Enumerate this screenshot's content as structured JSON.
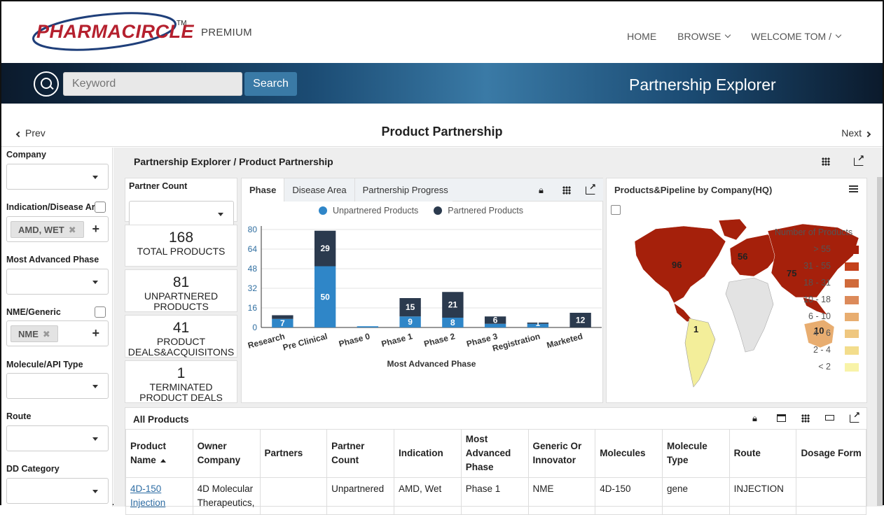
{
  "brand": {
    "logo_text": "PHARMACIRCLE",
    "tm": "TM",
    "tier": "PREMIUM"
  },
  "nav": {
    "home": "HOME",
    "browse": "BROWSE",
    "welcome": "WELCOME TOM /"
  },
  "search": {
    "placeholder": "Keyword",
    "button": "Search",
    "section_title": "Partnership Explorer"
  },
  "page": {
    "prev": "Prev",
    "next": "Next",
    "title": "Product Partnership"
  },
  "filters": {
    "company": "Company",
    "indication": "Indication/Disease Ar",
    "indication_tag": "AMD, WET",
    "phase": "Most Advanced Phase",
    "nme": "NME/Generic",
    "nme_tag": "NME",
    "molecule": "Molecule/API Type",
    "route": "Route",
    "dd": "DD Category"
  },
  "breadcrumb": "Partnership Explorer / Product Partnership",
  "kpis": {
    "partner_count_label": "Partner Count",
    "total": {
      "n": "168",
      "label": "TOTAL PRODUCTS"
    },
    "unpartnered": {
      "n": "81",
      "label1": "UNPARTNERED",
      "label2": "PRODUCTS"
    },
    "deals": {
      "n": "41",
      "label1": "PRODUCT",
      "label2": "DEALS&ACQUISITONS"
    },
    "terminated": {
      "n": "1",
      "label1": "TERMINATED",
      "label2": "PRODUCT DEALS"
    }
  },
  "chart_tabs": [
    "Phase",
    "Disease Area",
    "Partnership Progress"
  ],
  "chart_data": {
    "type": "bar",
    "stacked": true,
    "categories": [
      "Research",
      "Pre Clinical",
      "Phase 0",
      "Phase 1",
      "Phase 2",
      "Phase 3",
      "Registration",
      "Marketed"
    ],
    "series": [
      {
        "name": "Unpartnered Products",
        "color": "#2f86c8",
        "values": [
          7,
          50,
          1,
          9,
          8,
          3,
          3,
          0
        ]
      },
      {
        "name": "Partnered Products",
        "color": "#2b3a4e",
        "values": [
          3,
          29,
          0,
          15,
          21,
          6,
          1,
          12
        ]
      }
    ],
    "data_labels": {
      "Unpartnered Products": [
        "7",
        "50",
        "",
        "9",
        "8",
        "",
        "",
        ""
      ],
      "Partnered Products": [
        "",
        "29",
        "",
        "15",
        "21",
        "6",
        "1",
        "12"
      ]
    },
    "yticks": [
      0,
      16,
      32,
      48,
      64,
      80
    ],
    "ylim": [
      0,
      80
    ],
    "xlabel": "Most Advanced Phase",
    "ylabel": "",
    "grid": true,
    "legend": "top"
  },
  "map": {
    "title": "Products&Pipeline by Company(HQ)",
    "legend_title": "Number of Products",
    "legend": [
      {
        "label": "> 55",
        "color": "#a5200b"
      },
      {
        "label": "31 - 55",
        "color": "#c4401a"
      },
      {
        "label": "18 - 31",
        "color": "#d06a3a"
      },
      {
        "label": "10 - 18",
        "color": "#dc8a5a"
      },
      {
        "label": "6 - 10",
        "color": "#e8ad70"
      },
      {
        "label": "4 - 6",
        "color": "#efc77f"
      },
      {
        "label": "2 - 4",
        "color": "#f3dd8c"
      },
      {
        "label": "< 2",
        "color": "#f8f3a8"
      }
    ],
    "values": {
      "north_america": "96",
      "europe": "56",
      "asia": "75",
      "south_america": "1",
      "oceania": "10"
    }
  },
  "table": {
    "title": "All Products",
    "headers": [
      "Product Name",
      "Owner Company",
      "Partners",
      "Partner Count",
      "Indication",
      "Most Advanced Phase",
      "Generic Or Innovator",
      "Molecules",
      "Molecule Type",
      "Route",
      "Dosage Form"
    ],
    "rows": [
      [
        "4D-150 Injection",
        "4D Molecular Therapeutics,",
        "",
        "Unpartnered",
        "AMD, Wet",
        "Phase 1",
        "NME",
        "4D-150",
        "gene",
        "INJECTION",
        ""
      ]
    ]
  }
}
